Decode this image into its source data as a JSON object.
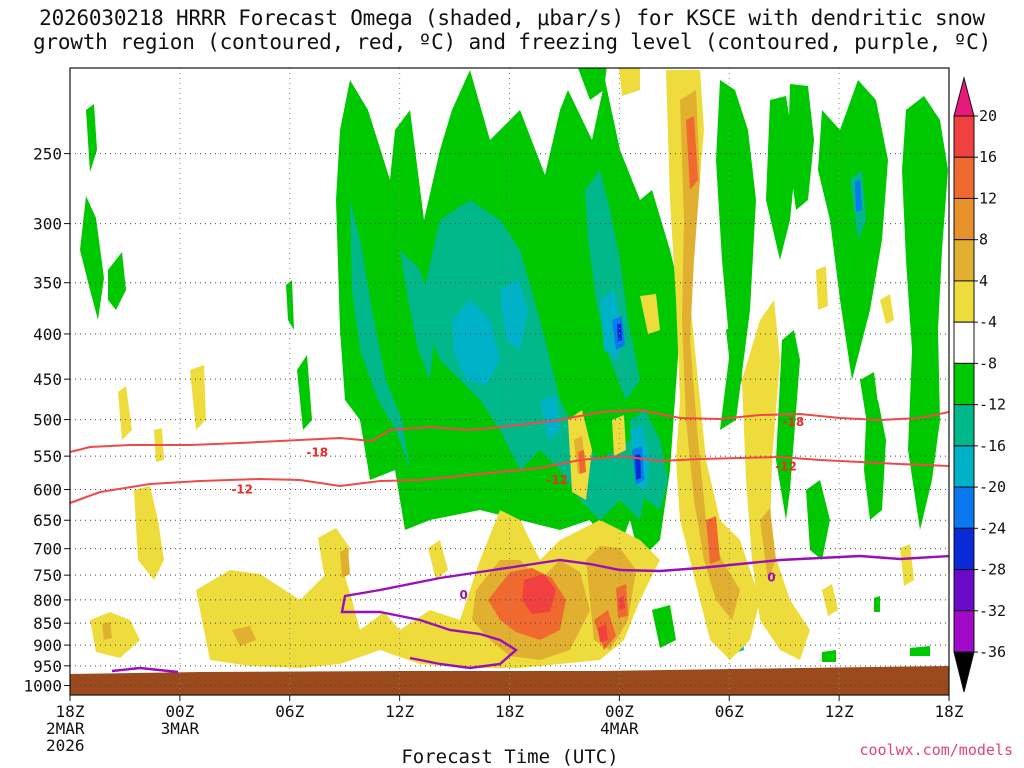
{
  "title": {
    "line1": "2026030218 HRRR Forecast Omega (shaded, μbar/s) for KSCE with dendritic snow",
    "line2": "growth region (contoured, red, ºC) and freezing level (contoured, purple, ºC)"
  },
  "xaxis_title": "Forecast Time (UTC)",
  "credit": "coolwx.com/models",
  "chart_data": {
    "type": "heatmap",
    "title": "2026030218 HRRR Forecast Omega (shaded, μbar/s) for KSCE with dendritic snow growth region (contoured, red, ºC) and freezing level (contoured, purple, ºC)",
    "xlabel": "Forecast Time (UTC)",
    "ylabel": "",
    "x_ticks": [
      {
        "hour": 0,
        "lines": [
          "18Z",
          "2MAR",
          "2026"
        ]
      },
      {
        "hour": 6,
        "lines": [
          "00Z",
          "3MAR"
        ]
      },
      {
        "hour": 12,
        "lines": [
          "06Z"
        ]
      },
      {
        "hour": 18,
        "lines": [
          "12Z"
        ]
      },
      {
        "hour": 24,
        "lines": [
          "18Z"
        ]
      },
      {
        "hour": 30,
        "lines": [
          "00Z",
          "4MAR"
        ]
      },
      {
        "hour": 36,
        "lines": [
          "06Z"
        ]
      },
      {
        "hour": 42,
        "lines": [
          "12Z"
        ]
      },
      {
        "hour": 48,
        "lines": [
          "18Z"
        ]
      }
    ],
    "xlim_hours": [
      0,
      48
    ],
    "y_pressure_levels_hpa": [
      250,
      300,
      350,
      400,
      450,
      500,
      550,
      600,
      650,
      700,
      750,
      800,
      850,
      900,
      950,
      1000
    ],
    "ylim_hpa": [
      1025,
      200
    ],
    "y_scale": "log",
    "grid": true,
    "colorbar": {
      "levels": [
        20,
        16,
        12,
        8,
        4,
        -4,
        -8,
        -12,
        -16,
        -20,
        -24,
        -28,
        -32,
        -36
      ],
      "colors": [
        "#e8197a",
        "#f04040",
        "#f06a30",
        "#e8902a",
        "#e2b030",
        "#eedb3c",
        "#ffffff",
        "#00c800",
        "#00b88a",
        "#00b2c8",
        "#0a78f0",
        "#0a2ad8",
        "#6a0ac8",
        "#a00ac8",
        "#a8a8a8",
        "#000000"
      ]
    },
    "contours": [
      {
        "field": "temperature",
        "color": "#ef4a4a",
        "levels": [
          -18,
          -12
        ]
      },
      {
        "field": "freezing_level",
        "color": "#9a10b8",
        "levels": [
          0
        ]
      }
    ],
    "contour_labels": [
      {
        "text": "-18",
        "hour": 13.5,
        "p": 545,
        "color": "red"
      },
      {
        "text": "-18",
        "hour": 39.5,
        "p": 503,
        "color": "red"
      },
      {
        "text": "-12",
        "hour": 9.4,
        "p": 600,
        "color": "red"
      },
      {
        "text": "-12",
        "hour": 26.6,
        "p": 585,
        "color": "red"
      },
      {
        "text": "-12",
        "hour": 39.1,
        "p": 565,
        "color": "red"
      },
      {
        "text": "0",
        "hour": 21.5,
        "p": 790,
        "color": "purple"
      },
      {
        "text": "0",
        "hour": 38.3,
        "p": 755,
        "color": "purple"
      }
    ]
  }
}
